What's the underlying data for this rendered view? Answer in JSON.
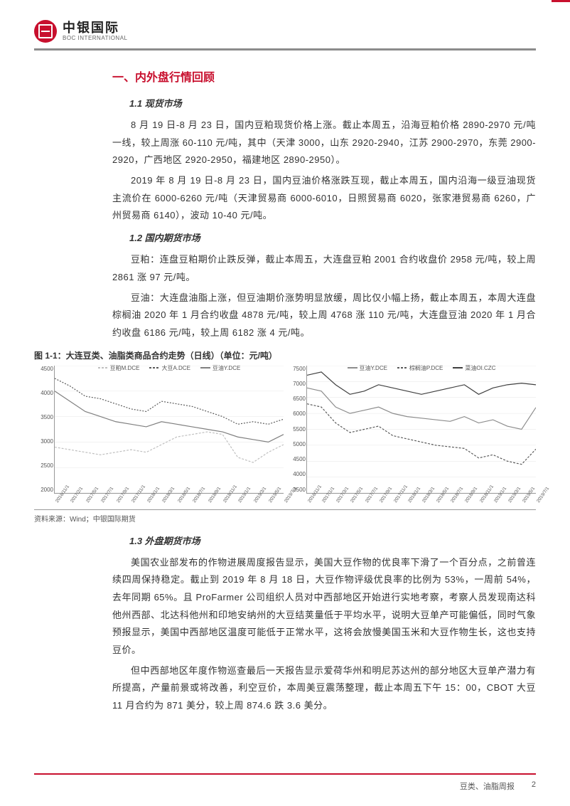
{
  "brand_cn": "中银国际",
  "brand_en": "BOC INTERNATIONAL",
  "section1_title": "一、内外盘行情回顾",
  "sub_1_1": "1.1 现货市场",
  "p_1_1_a": "8 月 19 日-8 月 23 日，国内豆粕现货价格上涨。截止本周五，沿海豆粕价格 2890-2970 元/吨一线，较上周涨 60-110 元/吨，其中（天津 3000，山东 2920-2940，江苏 2900-2970，东莞 2900-2920，广西地区 2920-2950，福建地区 2890-2950）。",
  "p_1_1_b": "2019 年 8 月 19 日-8 月 23 日，国内豆油价格涨跌互现，截止本周五，国内沿海一级豆油现货主流价在 6000-6260 元/吨（天津贸易商 6000-6010，日照贸易商 6020，张家港贸易商 6260，广州贸易商 6140），波动 10-40 元/吨。",
  "sub_1_2": "1.2 国内期货市场",
  "p_1_2_a": "豆粕：连盘豆粕期价止跌反弹，截止本周五，大连盘豆粕 2001 合约收盘价 2958 元/吨，较上周 2861 涨 97 元/吨。",
  "p_1_2_b": "豆油：大连盘油脂上涨，但豆油期价涨势明显放缓，周比仅小幅上扬，截止本周五，本周大连盘棕榈油 2020 年 1 月合约收盘 4878 元/吨，较上周 4768 涨 110 元/吨，大连盘豆油 2020 年 1 月合约收盘 6186 元/吨，较上周 6182 涨 4 元/吨。",
  "fig_caption": "图 1-1：大连豆类、油脂类商品合约走势（日线）（单位：元/吨）",
  "source": "资料来源：Wind；中银国际期货",
  "sub_1_3": "1.3 外盘期货市场",
  "p_1_3_a": "美国农业部发布的作物进展周度报告显示，美国大豆作物的优良率下滑了一个百分点，之前曾连续四周保持稳定。截止到 2019 年 8 月 18 日，大豆作物评级优良率的比例为 53%，一周前 54%，去年同期 65%。且 ProFarmer 公司组织人员对中西部地区开始进行实地考察，考察人员发现南达科他州西部、北达科他州和印地安纳州的大豆结荚量低于平均水平，说明大豆单产可能偏低，同时气象预报显示，美国中西部地区温度可能低于正常水平，这将会放慢美国玉米和大豆作物生长，这也支持豆价。",
  "p_1_3_b": "但中西部地区年度作物巡查最后一天报告显示爱荷华州和明尼苏达州的部分地区大豆单产潜力有所提高，产量前景或将改善，利空豆价，本周美豆震荡整理，截止本周五下午 15：00，CBOT 大豆 11 月合约为 871 美分，较上周 874.6 跌 3.6 美分。",
  "footer_left": "豆类、油脂周报",
  "footer_page": "2",
  "chart_left": {
    "type": "line",
    "legend": [
      {
        "label": "豆粕M.DCE",
        "color": "#bfbfbf",
        "dash": "3,2"
      },
      {
        "label": "大豆A.DCE",
        "color": "#595959",
        "dash": "2,2"
      },
      {
        "label": "豆油Y.DCE",
        "color": "#7f7f7f",
        "dash": "none"
      }
    ],
    "ylim": [
      2000,
      4500
    ],
    "ytick_step": 500,
    "yticks": [
      "4500",
      "4000",
      "3500",
      "3000",
      "2500",
      "2000"
    ],
    "xticks": [
      "2016/11/1",
      "2017/2/1",
      "2017/5/1",
      "2017/7/1",
      "2017/9/1",
      "2017/11/1",
      "2018/1/1",
      "2018/3/1",
      "2018/5/1",
      "2018/7/1",
      "2018/9/1",
      "2018/11/1",
      "2019/1/1",
      "2019/3/1",
      "2019/5/1",
      "2019/7/1"
    ],
    "series": {
      "m_dce": [
        2900,
        2850,
        2800,
        2750,
        2800,
        2850,
        2800,
        2950,
        3100,
        3150,
        3200,
        3150,
        2700,
        2600,
        2800,
        2950
      ],
      "a_dce": [
        4250,
        4100,
        3900,
        3850,
        3750,
        3650,
        3600,
        3800,
        3750,
        3700,
        3600,
        3500,
        3350,
        3400,
        3350,
        3450
      ],
      "y_dce": [
        4000,
        3800,
        3600,
        3500,
        3400,
        3350,
        3300,
        3400,
        3350,
        3300,
        3250,
        3200,
        3100,
        3050,
        3000,
        3150
      ]
    },
    "background_color": "#ffffff",
    "grid_color": "#e6e6e6",
    "line_width": 1.2
  },
  "chart_right": {
    "type": "line",
    "legend": [
      {
        "label": "豆油Y.DCE",
        "color": "#8c8c8c",
        "dash": "none"
      },
      {
        "label": "棕榈油P.DCE",
        "color": "#595959",
        "dash": "3,2"
      },
      {
        "label": "菜油OI.CZC",
        "color": "#3f3f3f",
        "dash": "none"
      }
    ],
    "ylim": [
      3500,
      7500
    ],
    "ytick_step": 500,
    "yticks": [
      "7500",
      "7000",
      "6500",
      "6000",
      "5500",
      "5000",
      "4500",
      "4000",
      "3500"
    ],
    "xticks": [
      "2016/11/1",
      "2017/1/1",
      "2017/3/1",
      "2017/5/1",
      "2017/7/1",
      "2017/9/1",
      "2017/11/1",
      "2018/1/1",
      "2018/3/1",
      "2018/5/1",
      "2018/7/1",
      "2018/9/1",
      "2018/11/1",
      "2019/1/1",
      "2019/3/1",
      "2019/5/1",
      "2019/7/1"
    ],
    "series": {
      "y_dce": [
        6800,
        6700,
        6200,
        6000,
        6100,
        6200,
        6000,
        5900,
        5850,
        5800,
        5750,
        5900,
        5700,
        5800,
        5600,
        5500,
        6186
      ],
      "p_dce": [
        6300,
        6200,
        5700,
        5400,
        5500,
        5600,
        5300,
        5200,
        5100,
        5000,
        4950,
        4900,
        4600,
        4700,
        4500,
        4400,
        4878
      ],
      "oi_czc": [
        7200,
        7300,
        6900,
        6600,
        6700,
        6900,
        6800,
        6700,
        6600,
        6700,
        6800,
        6900,
        6600,
        6800,
        6900,
        6950,
        6900
      ]
    },
    "background_color": "#ffffff",
    "grid_color": "#e6e6e6",
    "line_width": 1.2
  }
}
